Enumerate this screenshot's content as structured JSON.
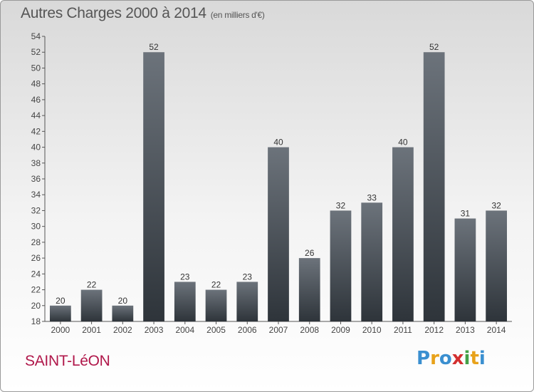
{
  "header": {
    "title": "Autres Charges 2000 à 2014",
    "unit": "(en milliers d'€)"
  },
  "commune": "SAINT-LéON",
  "logo": {
    "text": "Proxiti",
    "colors": [
      "#3a8fd0",
      "#e8a21a",
      "#3a8fd0",
      "#d32f2f",
      "#43a047",
      "#e8a21a",
      "#3a8fd0"
    ]
  },
  "colors": {
    "bar_light": "#6c737b",
    "bar_dark": "#2e343a",
    "axis": "#555555",
    "grid": "#d6d6d6"
  },
  "chart_data": {
    "type": "bar",
    "title": "Autres Charges 2000 à 2014",
    "subtitle": "(en milliers d'€)",
    "xlabel": "",
    "ylabel": "",
    "categories": [
      "2000",
      "2001",
      "2002",
      "2003",
      "2004",
      "2005",
      "2006",
      "2007",
      "2008",
      "2009",
      "2010",
      "2011",
      "2012",
      "2013",
      "2014"
    ],
    "values": [
      20,
      22,
      20,
      52,
      23,
      22,
      23,
      40,
      26,
      32,
      33,
      40,
      52,
      31,
      32
    ],
    "ylim": [
      18,
      54
    ],
    "yticks": [
      18,
      20,
      22,
      24,
      26,
      28,
      30,
      32,
      34,
      36,
      38,
      40,
      42,
      44,
      46,
      48,
      50,
      52,
      54
    ],
    "grid": false,
    "legend": "none"
  }
}
